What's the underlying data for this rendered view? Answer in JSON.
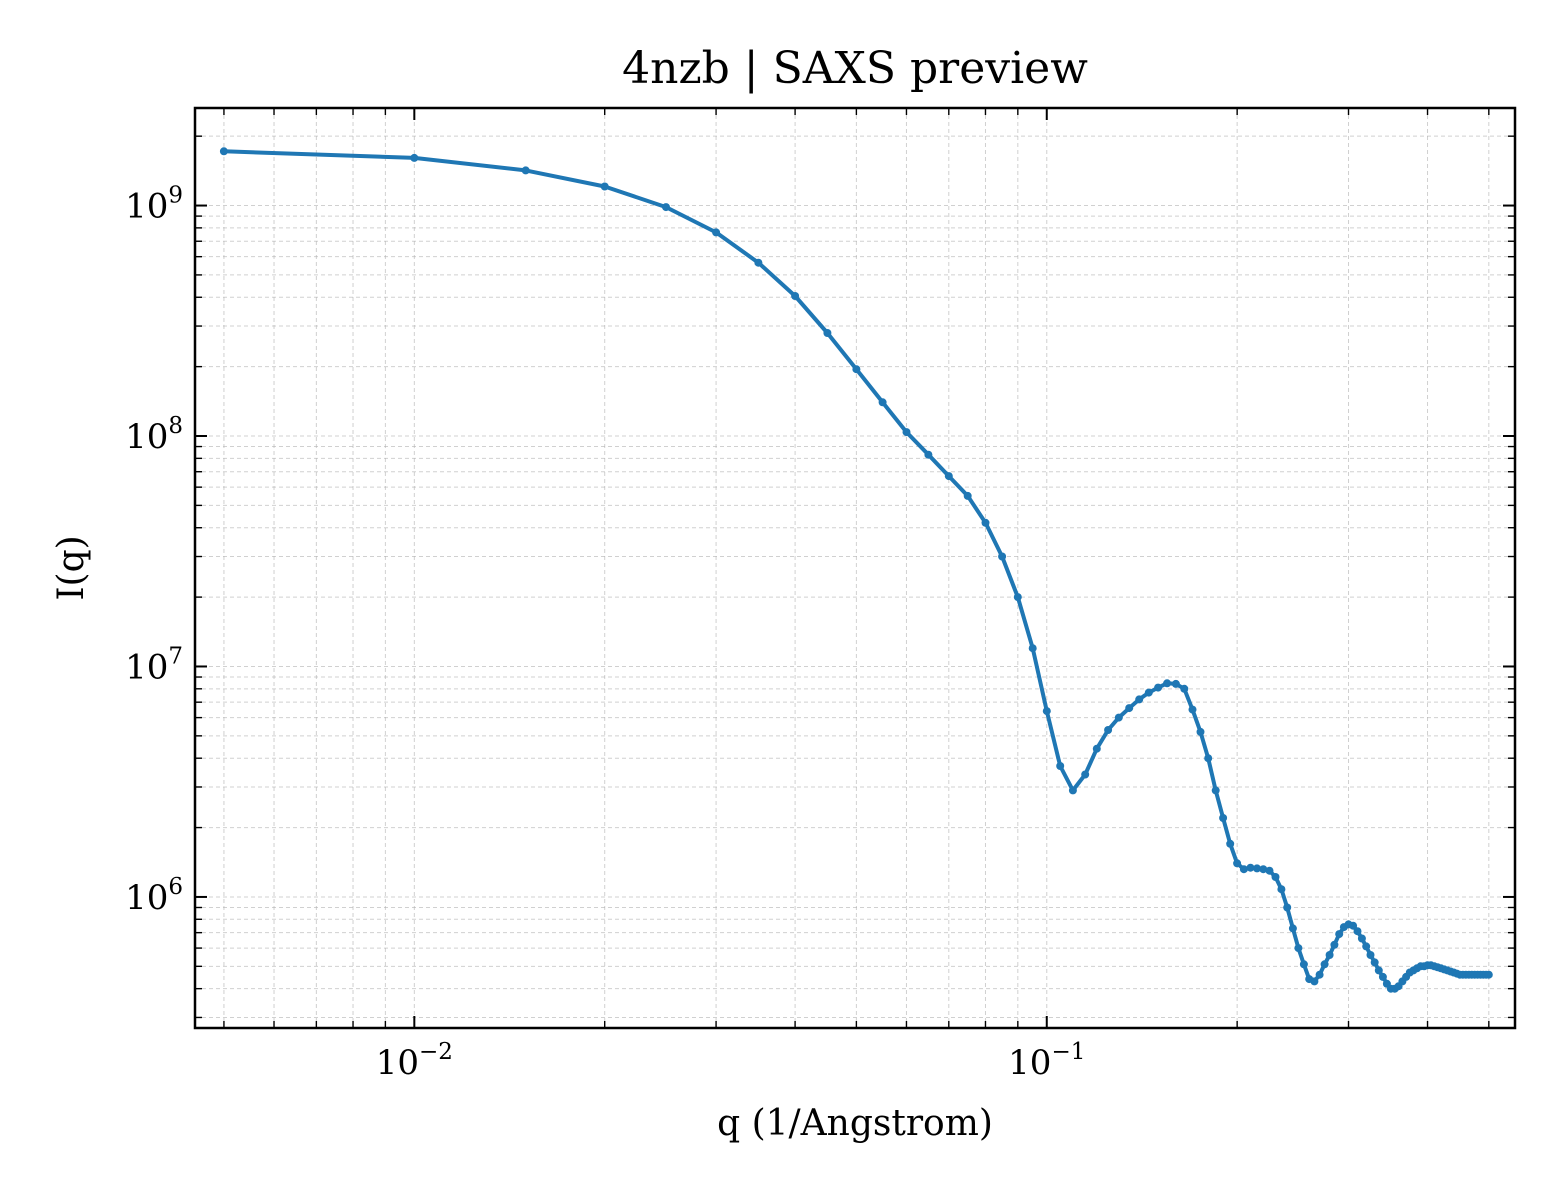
{
  "chart_data": {
    "type": "line",
    "title": "4nzb | SAXS preview",
    "xlabel": "q (1/Angstrom)",
    "ylabel": "I(q)",
    "x_scale": "log",
    "y_scale": "log",
    "xlim": [
      0.0045,
      0.55
    ],
    "ylim": [
      270000,
      2650000000
    ],
    "grid": true,
    "color": "#1f77b4",
    "x_ticks": [
      {
        "value": 0.01,
        "base": "10",
        "exp": "−2"
      },
      {
        "value": 0.1,
        "base": "10",
        "exp": "−1"
      }
    ],
    "y_ticks": [
      {
        "value": 1000000,
        "base": "10",
        "exp": "6"
      },
      {
        "value": 10000000,
        "base": "10",
        "exp": "7"
      },
      {
        "value": 100000000,
        "base": "10",
        "exp": "8"
      },
      {
        "value": 1000000000,
        "base": "10",
        "exp": "9"
      }
    ],
    "x": [
      0.005,
      0.01,
      0.015,
      0.02,
      0.025,
      0.03,
      0.035,
      0.04,
      0.045,
      0.05,
      0.055,
      0.06,
      0.065,
      0.07,
      0.075,
      0.08,
      0.085,
      0.09,
      0.095,
      0.1,
      0.105,
      0.11,
      0.115,
      0.12,
      0.125,
      0.13,
      0.135,
      0.14,
      0.145,
      0.15,
      0.155,
      0.16,
      0.165,
      0.17,
      0.175,
      0.18,
      0.185,
      0.19,
      0.195,
      0.2,
      0.205,
      0.21,
      0.215,
      0.22,
      0.225,
      0.23,
      0.235,
      0.24,
      0.245,
      0.25,
      0.255,
      0.26,
      0.265,
      0.27,
      0.275,
      0.28,
      0.285,
      0.29,
      0.295,
      0.3,
      0.305,
      0.31,
      0.315,
      0.32,
      0.325,
      0.33,
      0.335,
      0.34,
      0.345,
      0.35,
      0.355,
      0.36,
      0.365,
      0.37,
      0.375,
      0.38,
      0.385,
      0.39,
      0.395,
      0.4,
      0.405,
      0.41,
      0.415,
      0.42,
      0.425,
      0.43,
      0.435,
      0.44,
      0.445,
      0.45,
      0.455,
      0.46,
      0.465,
      0.47,
      0.475,
      0.48,
      0.485,
      0.49,
      0.495,
      0.5
    ],
    "y": [
      1720000000,
      1610000000,
      1420000000,
      1210000000,
      985000000,
      765000000,
      565000000,
      405000000,
      280000000,
      195000000,
      140000000,
      104000000,
      83000000,
      67000000,
      55000000,
      42000000,
      30000000,
      20000000,
      12000000,
      6400000,
      3700000,
      2900000,
      3400000,
      4400000,
      5300000,
      6000000,
      6600000,
      7200000,
      7700000,
      8100000,
      8450000,
      8400000,
      8000000,
      6500000,
      5200000,
      4000000,
      2900000,
      2200000,
      1700000,
      1400000,
      1320000,
      1340000,
      1330000,
      1320000,
      1300000,
      1220000,
      1080000,
      900000,
      730000,
      600000,
      510000,
      440000,
      430000,
      460000,
      510000,
      560000,
      620000,
      690000,
      740000,
      760000,
      750000,
      710000,
      660000,
      610000,
      560000,
      520000,
      480000,
      450000,
      420000,
      400000,
      400000,
      410000,
      430000,
      450000,
      470000,
      480000,
      490000,
      500000,
      500000,
      505000,
      505000,
      500000,
      495000,
      490000,
      485000,
      480000,
      475000,
      470000,
      465000,
      460000,
      460000,
      460000,
      460000,
      460000,
      460000,
      460000,
      460000,
      460000,
      460000,
      460000
    ]
  }
}
